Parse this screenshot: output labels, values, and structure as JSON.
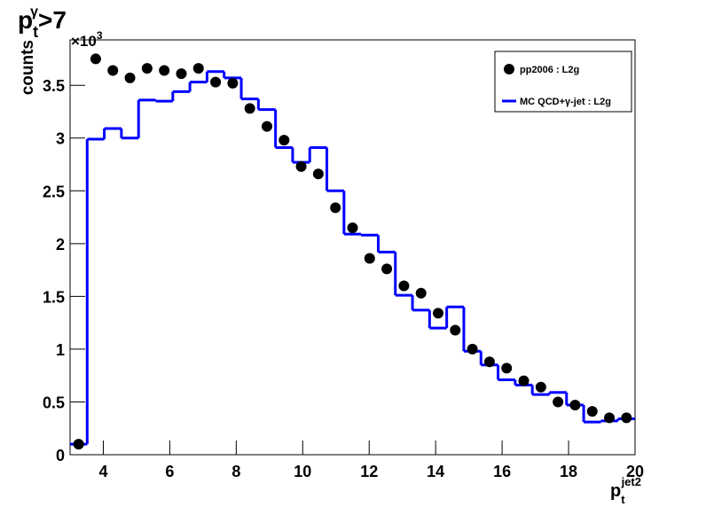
{
  "chart_data": {
    "type": "histogram",
    "title": {
      "base": "p",
      "sub": "t",
      "sup": "γ",
      "tail": ">7"
    },
    "x_label": {
      "base": "p",
      "sub": "t",
      "sup": "jet2"
    },
    "y_label": "counts",
    "y_multiplier": {
      "base": "×10",
      "sup": "3"
    },
    "bins": [
      3,
      3.515,
      4.03,
      4.545,
      5.061,
      5.576,
      6.091,
      6.606,
      7.121,
      7.636,
      8.152,
      8.667,
      9.182,
      9.697,
      10.212,
      10.727,
      11.242,
      11.758,
      12.273,
      12.788,
      13.303,
      13.818,
      14.333,
      14.848,
      15.364,
      15.879,
      16.394,
      16.909,
      17.424,
      17.939,
      18.455,
      18.97,
      19.485,
      20
    ],
    "series": [
      {
        "name": "pp2006 : L2g",
        "color": "#000000",
        "style": "markers",
        "values": [
          0.1,
          3.75,
          3.64,
          3.57,
          3.66,
          3.64,
          3.61,
          3.66,
          3.53,
          3.52,
          3.28,
          3.11,
          2.98,
          2.73,
          2.66,
          2.34,
          2.15,
          1.86,
          1.76,
          1.6,
          1.53,
          1.34,
          1.18,
          1.0,
          0.88,
          0.82,
          0.7,
          0.64,
          0.5,
          0.47,
          0.41,
          0.35,
          0.35
        ]
      },
      {
        "name": "MC QCD+γ-jet : L2g",
        "color": "#0000ff",
        "style": "step",
        "values": [
          0.1,
          2.99,
          3.09,
          3.0,
          3.36,
          3.35,
          3.44,
          3.53,
          3.63,
          3.57,
          3.37,
          3.27,
          2.91,
          2.77,
          2.91,
          2.5,
          2.09,
          2.08,
          1.92,
          1.51,
          1.37,
          1.2,
          1.4,
          0.98,
          0.85,
          0.71,
          0.66,
          0.57,
          0.59,
          0.47,
          0.31,
          0.32,
          0.34
        ]
      }
    ],
    "xlim": [
      3,
      20
    ],
    "xticks": [
      4,
      6,
      8,
      10,
      12,
      14,
      16,
      18,
      20
    ],
    "ylim": [
      0,
      3.93
    ],
    "yticks": [
      0,
      0.5,
      1,
      1.5,
      2,
      2.5,
      3,
      3.5
    ],
    "grid": false,
    "legend": "upper right"
  }
}
